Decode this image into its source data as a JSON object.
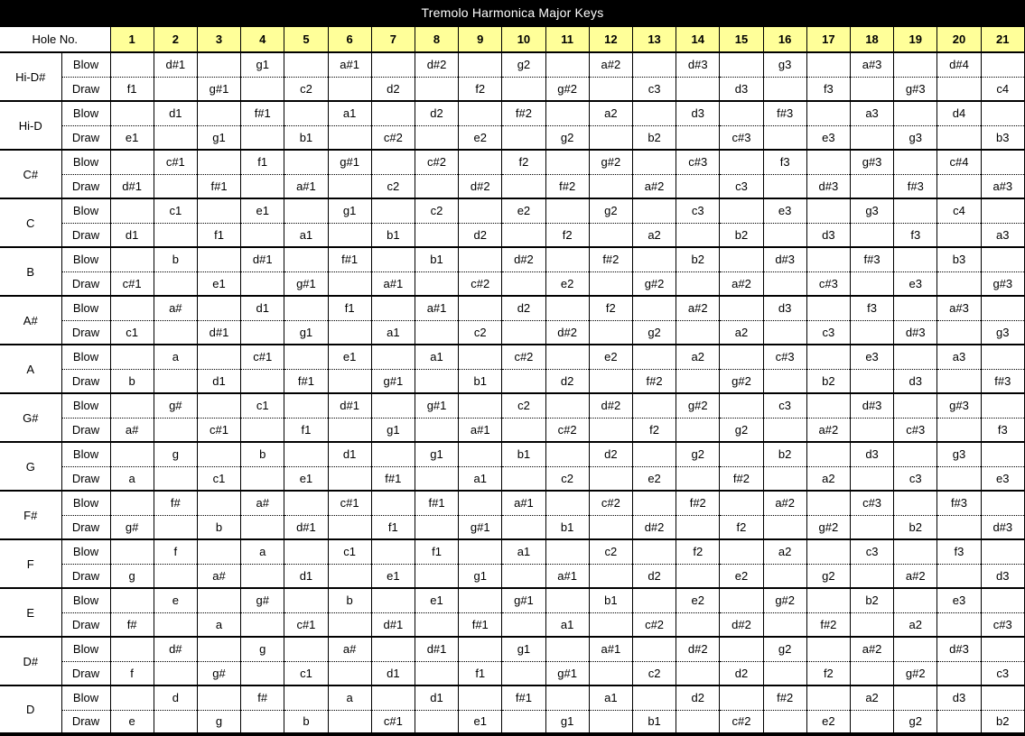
{
  "title": "Tremolo Harmonica Major Keys",
  "header": {
    "hole_label": "Hole No.",
    "holes": [
      "1",
      "2",
      "3",
      "4",
      "5",
      "6",
      "7",
      "8",
      "9",
      "10",
      "11",
      "12",
      "13",
      "14",
      "15",
      "16",
      "17",
      "18",
      "19",
      "20",
      "21"
    ]
  },
  "row_labels": {
    "blow": "Blow",
    "draw": "Draw"
  },
  "colors": {
    "header_yellow": "#FFFF99",
    "title_bg": "#000000",
    "title_fg": "#FFFFFF"
  },
  "keys": [
    {
      "name": "Hi-D#",
      "blow": [
        "",
        "d#1",
        "",
        "g1",
        "",
        "a#1",
        "",
        "d#2",
        "",
        "g2",
        "",
        "a#2",
        "",
        "d#3",
        "",
        "g3",
        "",
        "a#3",
        "",
        "d#4",
        ""
      ],
      "draw": [
        "f1",
        "",
        "g#1",
        "",
        "c2",
        "",
        "d2",
        "",
        "f2",
        "",
        "g#2",
        "",
        "c3",
        "",
        "d3",
        "",
        "f3",
        "",
        "g#3",
        "",
        "c4"
      ]
    },
    {
      "name": "Hi-D",
      "blow": [
        "",
        "d1",
        "",
        "f#1",
        "",
        "a1",
        "",
        "d2",
        "",
        "f#2",
        "",
        "a2",
        "",
        "d3",
        "",
        "f#3",
        "",
        "a3",
        "",
        "d4",
        ""
      ],
      "draw": [
        "e1",
        "",
        "g1",
        "",
        "b1",
        "",
        "c#2",
        "",
        "e2",
        "",
        "g2",
        "",
        "b2",
        "",
        "c#3",
        "",
        "e3",
        "",
        "g3",
        "",
        "b3"
      ]
    },
    {
      "name": "C#",
      "blow": [
        "",
        "c#1",
        "",
        "f1",
        "",
        "g#1",
        "",
        "c#2",
        "",
        "f2",
        "",
        "g#2",
        "",
        "c#3",
        "",
        "f3",
        "",
        "g#3",
        "",
        "c#4",
        ""
      ],
      "draw": [
        "d#1",
        "",
        "f#1",
        "",
        "a#1",
        "",
        "c2",
        "",
        "d#2",
        "",
        "f#2",
        "",
        "a#2",
        "",
        "c3",
        "",
        "d#3",
        "",
        "f#3",
        "",
        "a#3"
      ]
    },
    {
      "name": "C",
      "blow": [
        "",
        "c1",
        "",
        "e1",
        "",
        "g1",
        "",
        "c2",
        "",
        "e2",
        "",
        "g2",
        "",
        "c3",
        "",
        "e3",
        "",
        "g3",
        "",
        "c4",
        ""
      ],
      "draw": [
        "d1",
        "",
        "f1",
        "",
        "a1",
        "",
        "b1",
        "",
        "d2",
        "",
        "f2",
        "",
        "a2",
        "",
        "b2",
        "",
        "d3",
        "",
        "f3",
        "",
        "a3"
      ]
    },
    {
      "name": "B",
      "blow": [
        "",
        "b",
        "",
        "d#1",
        "",
        "f#1",
        "",
        "b1",
        "",
        "d#2",
        "",
        "f#2",
        "",
        "b2",
        "",
        "d#3",
        "",
        "f#3",
        "",
        "b3",
        ""
      ],
      "draw": [
        "c#1",
        "",
        "e1",
        "",
        "g#1",
        "",
        "a#1",
        "",
        "c#2",
        "",
        "e2",
        "",
        "g#2",
        "",
        "a#2",
        "",
        "c#3",
        "",
        "e3",
        "",
        "g#3"
      ]
    },
    {
      "name": "A#",
      "blow": [
        "",
        "a#",
        "",
        "d1",
        "",
        "f1",
        "",
        "a#1",
        "",
        "d2",
        "",
        "f2",
        "",
        "a#2",
        "",
        "d3",
        "",
        "f3",
        "",
        "a#3",
        ""
      ],
      "draw": [
        "c1",
        "",
        "d#1",
        "",
        "g1",
        "",
        "a1",
        "",
        "c2",
        "",
        "d#2",
        "",
        "g2",
        "",
        "a2",
        "",
        "c3",
        "",
        "d#3",
        "",
        "g3"
      ]
    },
    {
      "name": "A",
      "blow": [
        "",
        "a",
        "",
        "c#1",
        "",
        "e1",
        "",
        "a1",
        "",
        "c#2",
        "",
        "e2",
        "",
        "a2",
        "",
        "c#3",
        "",
        "e3",
        "",
        "a3",
        ""
      ],
      "draw": [
        "b",
        "",
        "d1",
        "",
        "f#1",
        "",
        "g#1",
        "",
        "b1",
        "",
        "d2",
        "",
        "f#2",
        "",
        "g#2",
        "",
        "b2",
        "",
        "d3",
        "",
        "f#3"
      ]
    },
    {
      "name": "G#",
      "blow": [
        "",
        "g#",
        "",
        "c1",
        "",
        "d#1",
        "",
        "g#1",
        "",
        "c2",
        "",
        "d#2",
        "",
        "g#2",
        "",
        "c3",
        "",
        "d#3",
        "",
        "g#3",
        ""
      ],
      "draw": [
        "a#",
        "",
        "c#1",
        "",
        "f1",
        "",
        "g1",
        "",
        "a#1",
        "",
        "c#2",
        "",
        "f2",
        "",
        "g2",
        "",
        "a#2",
        "",
        "c#3",
        "",
        "f3"
      ]
    },
    {
      "name": "G",
      "blow": [
        "",
        "g",
        "",
        "b",
        "",
        "d1",
        "",
        "g1",
        "",
        "b1",
        "",
        "d2",
        "",
        "g2",
        "",
        "b2",
        "",
        "d3",
        "",
        "g3",
        ""
      ],
      "draw": [
        "a",
        "",
        "c1",
        "",
        "e1",
        "",
        "f#1",
        "",
        "a1",
        "",
        "c2",
        "",
        "e2",
        "",
        "f#2",
        "",
        "a2",
        "",
        "c3",
        "",
        "e3"
      ]
    },
    {
      "name": "F#",
      "blow": [
        "",
        "f#",
        "",
        "a#",
        "",
        "c#1",
        "",
        "f#1",
        "",
        "a#1",
        "",
        "c#2",
        "",
        "f#2",
        "",
        "a#2",
        "",
        "c#3",
        "",
        "f#3",
        ""
      ],
      "draw": [
        "g#",
        "",
        "b",
        "",
        "d#1",
        "",
        "f1",
        "",
        "g#1",
        "",
        "b1",
        "",
        "d#2",
        "",
        "f2",
        "",
        "g#2",
        "",
        "b2",
        "",
        "d#3"
      ]
    },
    {
      "name": "F",
      "blow": [
        "",
        "f",
        "",
        "a",
        "",
        "c1",
        "",
        "f1",
        "",
        "a1",
        "",
        "c2",
        "",
        "f2",
        "",
        "a2",
        "",
        "c3",
        "",
        "f3",
        ""
      ],
      "draw": [
        "g",
        "",
        "a#",
        "",
        "d1",
        "",
        "e1",
        "",
        "g1",
        "",
        "a#1",
        "",
        "d2",
        "",
        "e2",
        "",
        "g2",
        "",
        "a#2",
        "",
        "d3"
      ]
    },
    {
      "name": "E",
      "blow": [
        "",
        "e",
        "",
        "g#",
        "",
        "b",
        "",
        "e1",
        "",
        "g#1",
        "",
        "b1",
        "",
        "e2",
        "",
        "g#2",
        "",
        "b2",
        "",
        "e3",
        ""
      ],
      "draw": [
        "f#",
        "",
        "a",
        "",
        "c#1",
        "",
        "d#1",
        "",
        "f#1",
        "",
        "a1",
        "",
        "c#2",
        "",
        "d#2",
        "",
        "f#2",
        "",
        "a2",
        "",
        "c#3"
      ]
    },
    {
      "name": "D#",
      "blow": [
        "",
        "d#",
        "",
        "g",
        "",
        "a#",
        "",
        "d#1",
        "",
        "g1",
        "",
        "a#1",
        "",
        "d#2",
        "",
        "g2",
        "",
        "a#2",
        "",
        "d#3",
        ""
      ],
      "draw": [
        "f",
        "",
        "g#",
        "",
        "c1",
        "",
        "d1",
        "",
        "f1",
        "",
        "g#1",
        "",
        "c2",
        "",
        "d2",
        "",
        "f2",
        "",
        "g#2",
        "",
        "c3"
      ]
    },
    {
      "name": "D",
      "blow": [
        "",
        "d",
        "",
        "f#",
        "",
        "a",
        "",
        "d1",
        "",
        "f#1",
        "",
        "a1",
        "",
        "d2",
        "",
        "f#2",
        "",
        "a2",
        "",
        "d3",
        ""
      ],
      "draw": [
        "e",
        "",
        "g",
        "",
        "b",
        "",
        "c#1",
        "",
        "e1",
        "",
        "g1",
        "",
        "b1",
        "",
        "c#2",
        "",
        "e2",
        "",
        "g2",
        "",
        "b2"
      ]
    }
  ]
}
